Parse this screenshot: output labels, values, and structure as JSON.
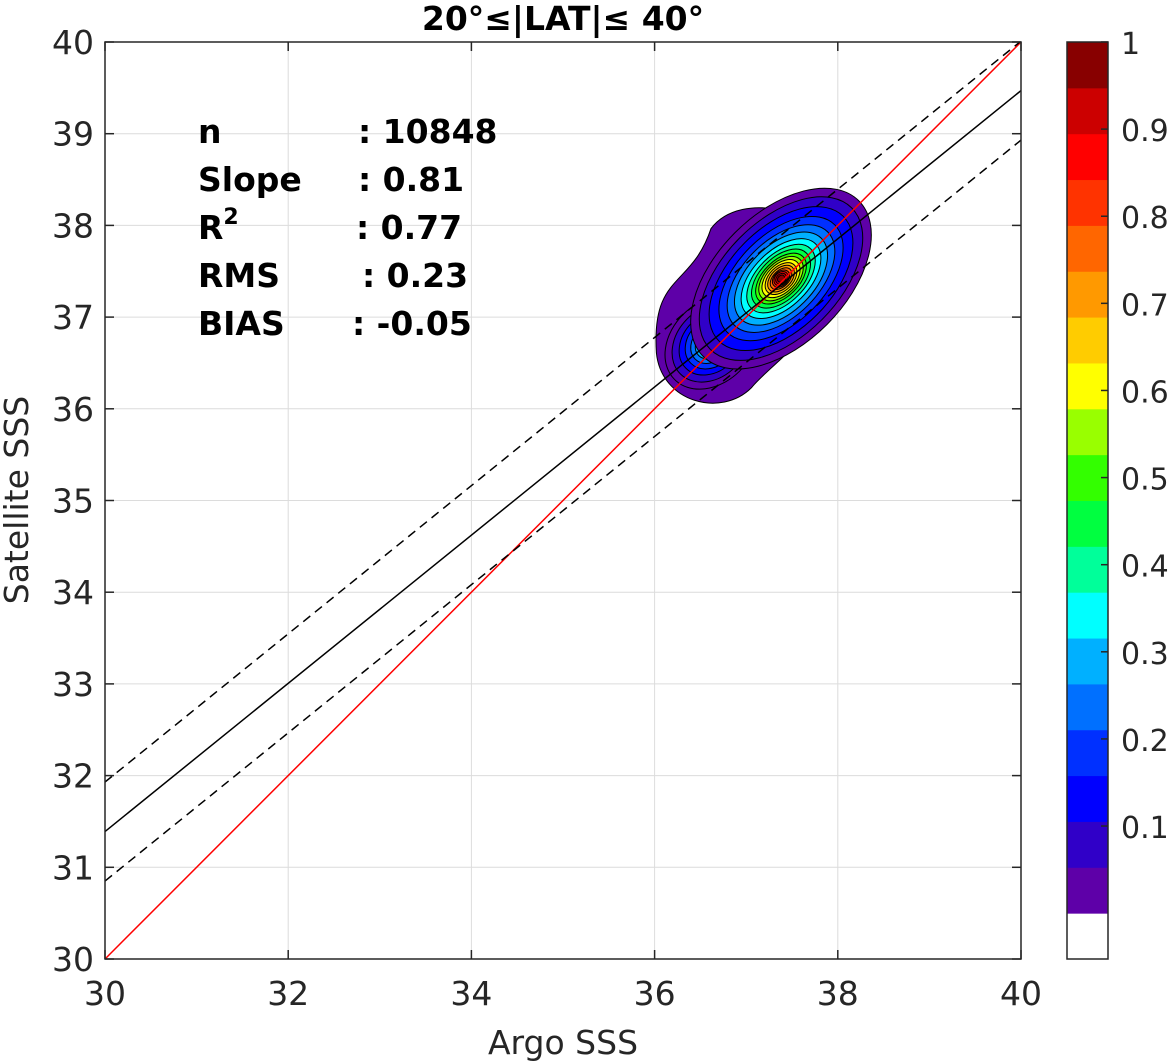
{
  "chart_data": {
    "type": "scatter",
    "title": "20°≤|LAT|≤ 40°",
    "xlabel": "Argo SSS",
    "ylabel": "Satellite SSS",
    "xlim": [
      30,
      40
    ],
    "ylim": [
      30,
      40
    ],
    "xticks": [
      30,
      32,
      34,
      36,
      38,
      40
    ],
    "yticks": [
      30,
      31,
      32,
      33,
      34,
      35,
      36,
      37,
      38,
      39,
      40
    ],
    "grid": true,
    "stats": [
      {
        "label": "n",
        "sep": ": 10848"
      },
      {
        "label": "Slope",
        "sep": ": 0.81"
      },
      {
        "label": "R",
        "sup": "2",
        "sep": ": 0.77"
      },
      {
        "label": "RMS",
        "sep": ": 0.23"
      },
      {
        "label": "BIAS",
        "sep": ": -0.05"
      }
    ],
    "lines": [
      {
        "role": "one-to-one",
        "color": "#ff0000",
        "style": "solid",
        "x": [
          30,
          40
        ],
        "y": [
          30,
          40
        ]
      },
      {
        "role": "regression",
        "color": "#000000",
        "style": "solid",
        "x": [
          30,
          40
        ],
        "y": [
          31.39,
          39.47
        ]
      },
      {
        "role": "regression-upper",
        "color": "#000000",
        "style": "dashed",
        "x": [
          30,
          40
        ],
        "y": [
          31.93,
          40.01
        ]
      },
      {
        "role": "regression-lower",
        "color": "#000000",
        "style": "dashed",
        "x": [
          30,
          40
        ],
        "y": [
          30.85,
          38.93
        ]
      }
    ],
    "density": {
      "description": "normalized 2D density contours (0-1)",
      "peaks": [
        {
          "x": 37.38,
          "y": 37.42,
          "value": 1.0
        },
        {
          "x": 36.62,
          "y": 36.72,
          "value": 0.45
        }
      ]
    },
    "colorbar": {
      "ticks": [
        "1",
        "0.9",
        "0.8",
        "0.7",
        "0.6",
        "0.5",
        "0.4",
        "0.3",
        "0.2",
        "0.1"
      ],
      "colors": [
        "#ffffff",
        "#5e00a8",
        "#3000c8",
        "#0000ff",
        "#0030ff",
        "#0070ff",
        "#00b0ff",
        "#00ffff",
        "#00ff9a",
        "#00ff40",
        "#33ff00",
        "#99ff00",
        "#ffff00",
        "#ffcc00",
        "#ff9900",
        "#ff6600",
        "#ff3300",
        "#ff0000",
        "#cc0000",
        "#880000"
      ]
    }
  }
}
